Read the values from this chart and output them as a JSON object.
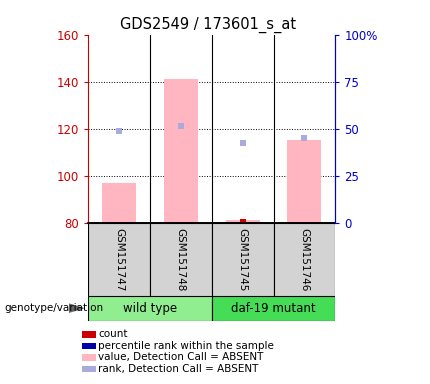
{
  "title": "GDS2549 / 173601_s_at",
  "samples": [
    "GSM151747",
    "GSM151748",
    "GSM151745",
    "GSM151746"
  ],
  "groups": [
    {
      "label": "wild type",
      "color": "#90EE90",
      "indices": [
        0,
        1
      ]
    },
    {
      "label": "daf-19 mutant",
      "color": "#44DD55",
      "indices": [
        2,
        3
      ]
    }
  ],
  "ylim_left": [
    80,
    160
  ],
  "ylim_right": [
    0,
    100
  ],
  "yticks_left": [
    80,
    100,
    120,
    140,
    160
  ],
  "yticks_right": [
    0,
    25,
    50,
    75,
    100
  ],
  "ytick_labels_right": [
    "0",
    "25",
    "50",
    "75",
    "100%"
  ],
  "pink_bars": {
    "values": [
      97,
      141,
      81,
      115
    ],
    "color": "#FFB6C1"
  },
  "blue_squares": {
    "values": [
      119,
      121,
      114,
      116
    ],
    "color": "#AAAADD"
  },
  "red_dot": {
    "x": 2,
    "value": 80.5,
    "color": "#CC0000"
  },
  "left_axis_color": "#CC0000",
  "right_axis_color": "#0000CC",
  "legend_items": [
    {
      "label": "count",
      "color": "#CC0000"
    },
    {
      "label": "percentile rank within the sample",
      "color": "#0000AA"
    },
    {
      "label": "value, Detection Call = ABSENT",
      "color": "#FFB6C1"
    },
    {
      "label": "rank, Detection Call = ABSENT",
      "color": "#AAAADD"
    }
  ],
  "genotype_label": "genotype/variation",
  "bar_bottom": 80
}
